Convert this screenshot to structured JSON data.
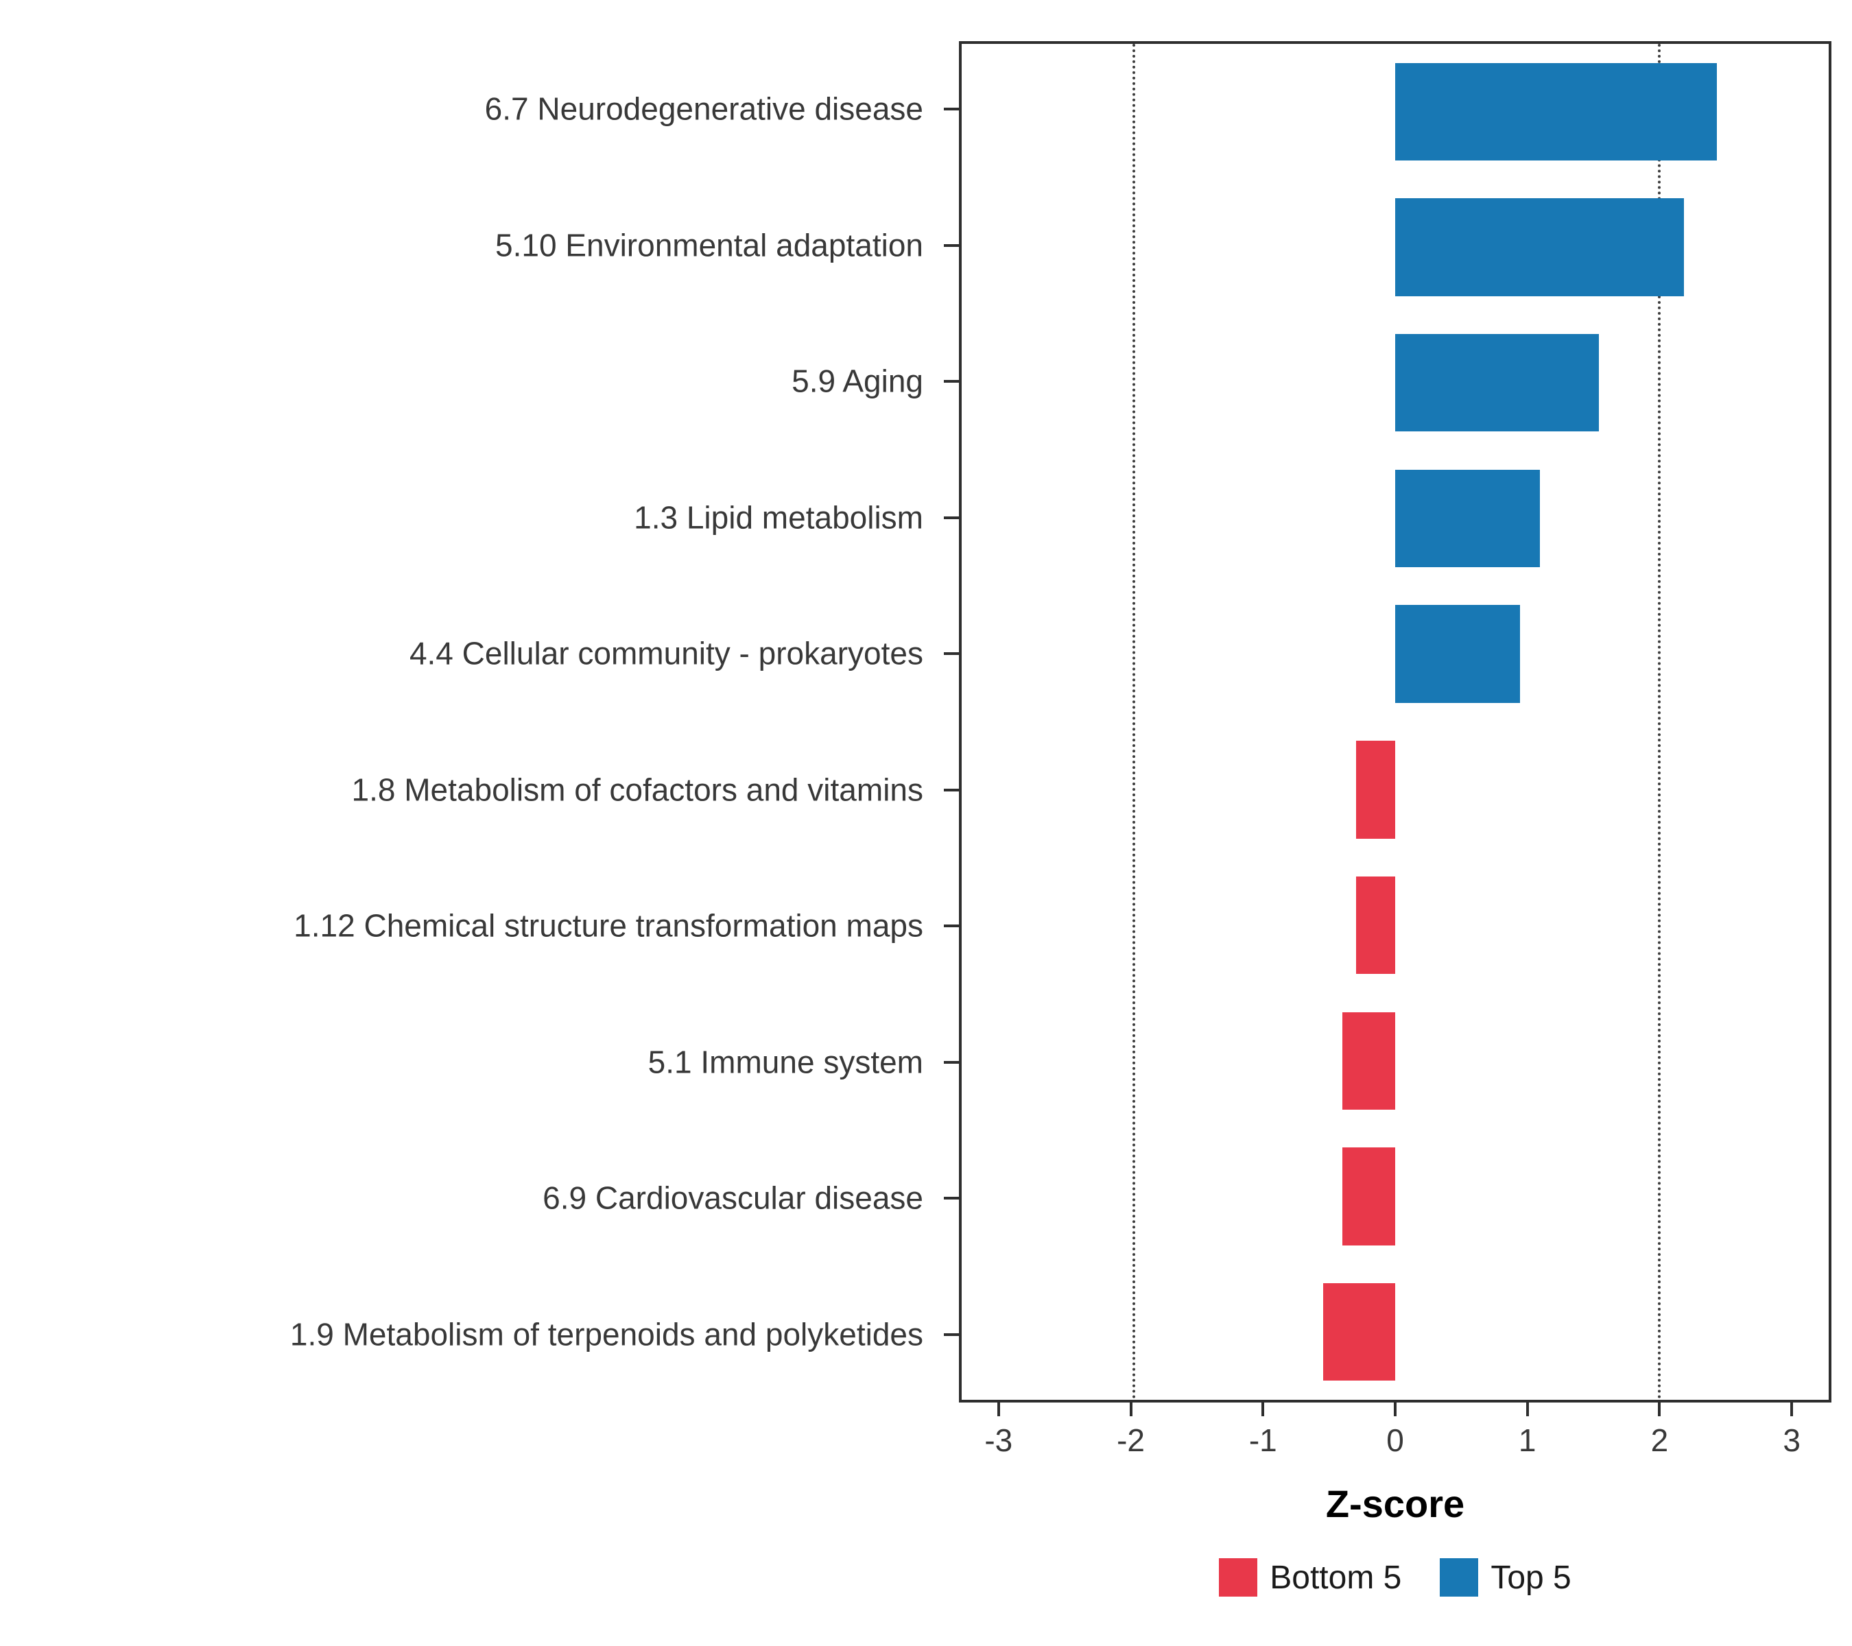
{
  "chart_data": {
    "type": "bar",
    "orientation": "horizontal",
    "title": "",
    "xlabel": "Z-score",
    "ylabel": "",
    "xlim": [
      -3.3,
      3.3
    ],
    "x_ticks": [
      -3,
      -2,
      -1,
      0,
      1,
      2,
      3
    ],
    "gridlines_dotted_at": [
      -2,
      2
    ],
    "categories": [
      "6.7 Neurodegenerative disease",
      "5.10 Environmental adaptation",
      "5.9 Aging",
      "1.3 Lipid metabolism",
      "4.4 Cellular community - prokaryotes",
      "1.8 Metabolism of cofactors and vitamins",
      "1.12 Chemical structure transformation maps",
      "5.1 Immune system",
      "6.9 Cardiovascular disease",
      "1.9 Metabolism of terpenoids and polyketides"
    ],
    "values": [
      2.45,
      2.2,
      1.55,
      1.1,
      0.95,
      -0.3,
      -0.3,
      -0.4,
      -0.4,
      -0.55
    ],
    "groups": [
      "Top 5",
      "Top 5",
      "Top 5",
      "Top 5",
      "Top 5",
      "Bottom 5",
      "Bottom 5",
      "Bottom 5",
      "Bottom 5",
      "Bottom 5"
    ],
    "colors": {
      "Top 5": "#1878B4",
      "Bottom 5": "#E8384A"
    },
    "legend": [
      {
        "label": "Bottom 5",
        "color": "#E8384A"
      },
      {
        "label": "Top 5",
        "color": "#1878B4"
      }
    ],
    "legend_position": "bottom-center",
    "grid": "off",
    "panel_border": "on"
  }
}
